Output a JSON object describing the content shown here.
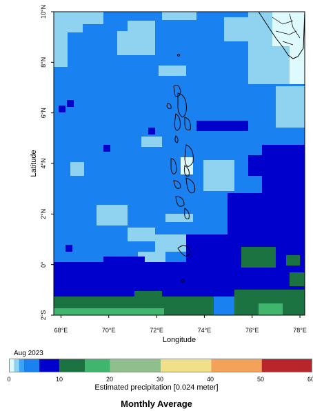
{
  "map": {
    "x_axis_title": "Longitude",
    "y_axis_title": "Latitude",
    "lon_ticks": [
      "68°E",
      "70°E",
      "72°E",
      "74°E",
      "76°E",
      "78°E"
    ],
    "lat_ticks": [
      "10°N",
      "8°N",
      "6°N",
      "4°N",
      "2°N",
      "0°",
      "2°S"
    ],
    "lon_range": [
      67.7,
      78.2
    ],
    "lat_range": [
      -2.0,
      10.0
    ],
    "colors": {
      "ocean_level_5_10": "#1a82f0",
      "level_2_5": "#3aa3f5",
      "level_0_2": "#8fd3f0",
      "level_near_zero": "#dffafc",
      "level_10_15": "#0000cc",
      "level_15_20": "#1a7341",
      "level_20_25": "#3fb56e",
      "outline": "#000000"
    }
  },
  "legend": {
    "period": "Aug 2023",
    "tick_labels": [
      "0",
      "10",
      "20",
      "30",
      "40",
      "50",
      "60"
    ],
    "tick_values": [
      0,
      10,
      20,
      30,
      40,
      50,
      60
    ],
    "bins": [
      {
        "from": 0,
        "to": 1,
        "color": "#dffafc"
      },
      {
        "from": 1,
        "to": 2,
        "color": "#8fd3f0"
      },
      {
        "from": 2,
        "to": 3,
        "color": "#3aa3f5"
      },
      {
        "from": 3,
        "to": 6,
        "color": "#1a82f0"
      },
      {
        "from": 6,
        "to": 10,
        "color": "#0000cc"
      },
      {
        "from": 10,
        "to": 15,
        "color": "#1a7341"
      },
      {
        "from": 15,
        "to": 20,
        "color": "#3fb56e"
      },
      {
        "from": 20,
        "to": 30,
        "color": "#8fbf8c"
      },
      {
        "from": 30,
        "to": 40,
        "color": "#f0e08a"
      },
      {
        "from": 40,
        "to": 50,
        "color": "#f4a25a"
      },
      {
        "from": 50,
        "to": 60,
        "color": "#b8252a"
      }
    ],
    "title": "Estimated precipitation [0.024 meter]"
  },
  "footer": {
    "title": "Monthly Average"
  }
}
